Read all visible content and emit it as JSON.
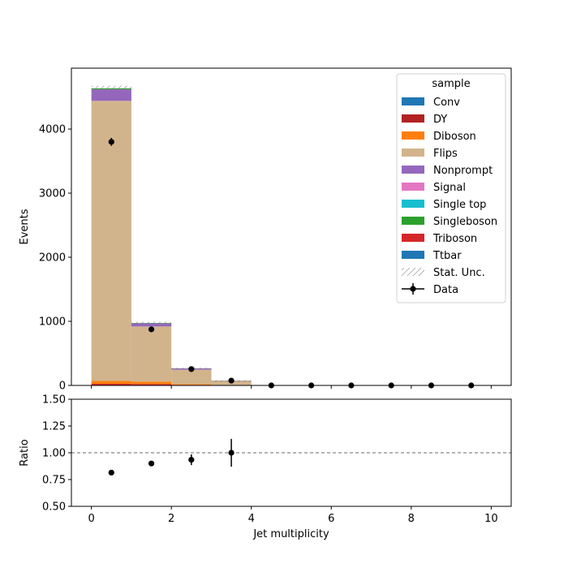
{
  "chart_data": [
    {
      "panel": "main",
      "type": "bar",
      "stacked": true,
      "xlabel": "",
      "ylabel": "Events",
      "xlim": [
        -0.5,
        10.5
      ],
      "ylim": [
        0,
        4950
      ],
      "yticks": [
        0,
        1000,
        2000,
        3000,
        4000
      ],
      "bin_edges": [
        0,
        1,
        2,
        3,
        4,
        5,
        6,
        7,
        8,
        9,
        10
      ],
      "legend": {
        "title": "sample",
        "placement": "top-right",
        "entries": [
          {
            "label": "Conv",
            "color": "#1f77b4",
            "kind": "patch"
          },
          {
            "label": "DY",
            "color": "#b22222",
            "kind": "patch"
          },
          {
            "label": "Diboson",
            "color": "#ff7f0e",
            "kind": "patch"
          },
          {
            "label": "Flips",
            "color": "#d2b48c",
            "kind": "patch"
          },
          {
            "label": "Nonprompt",
            "color": "#9467bd",
            "kind": "patch"
          },
          {
            "label": "Signal",
            "color": "#e377c2",
            "kind": "patch"
          },
          {
            "label": "Single top",
            "color": "#17becf",
            "kind": "patch"
          },
          {
            "label": "Singleboson",
            "color": "#2ca02c",
            "kind": "patch"
          },
          {
            "label": "Triboson",
            "color": "#d62728",
            "kind": "patch"
          },
          {
            "label": "Ttbar",
            "color": "#1f77b4",
            "kind": "patch"
          },
          {
            "label": "Stat. Unc.",
            "color": "#888888",
            "kind": "hatch"
          },
          {
            "label": "Data",
            "color": "#000000",
            "kind": "errorbar"
          }
        ]
      },
      "series": [
        {
          "name": "Triboson",
          "color": "#d62728",
          "values": [
            25,
            20,
            8,
            3,
            0,
            0,
            0,
            0,
            0,
            0
          ]
        },
        {
          "name": "Diboson",
          "color": "#ff7f0e",
          "values": [
            45,
            40,
            12,
            4,
            0,
            0,
            0,
            0,
            0,
            0
          ]
        },
        {
          "name": "Flips",
          "color": "#d2b48c",
          "values": [
            4370,
            860,
            225,
            63,
            0,
            0,
            0,
            0,
            0,
            0
          ]
        },
        {
          "name": "Nonprompt",
          "color": "#9467bd",
          "values": [
            180,
            50,
            20,
            5,
            0,
            0,
            0,
            0,
            0,
            0
          ]
        },
        {
          "name": "Singleboson",
          "color": "#2ca02c",
          "values": [
            15,
            5,
            2,
            1,
            0,
            0,
            0,
            0,
            0,
            0
          ]
        }
      ],
      "data": {
        "name": "Data",
        "x": [
          0.5,
          1.5,
          2.5,
          3.5,
          4.5,
          5.5,
          6.5,
          7.5,
          8.5,
          9.5
        ],
        "y": [
          3800,
          875,
          255,
          75,
          0,
          0,
          0,
          0,
          0,
          0
        ],
        "yerr": [
          62,
          30,
          16,
          9,
          0,
          0,
          0,
          0,
          0,
          0
        ]
      }
    },
    {
      "panel": "ratio",
      "type": "scatter",
      "xlabel": "Jet multiplicity",
      "ylabel": "Ratio",
      "xlim": [
        -0.5,
        10.5
      ],
      "ylim": [
        0.5,
        1.5
      ],
      "xticks": [
        0,
        2,
        4,
        6,
        8,
        10
      ],
      "yticks": [
        "0.50",
        "0.75",
        "1.00",
        "1.25",
        "1.50"
      ],
      "reference_line": 1.0,
      "x": [
        0.5,
        1.5,
        2.5,
        3.5
      ],
      "y": [
        0.815,
        0.9,
        0.935,
        1.0
      ],
      "yerr": [
        0.01,
        0.02,
        0.05,
        0.13
      ]
    }
  ]
}
